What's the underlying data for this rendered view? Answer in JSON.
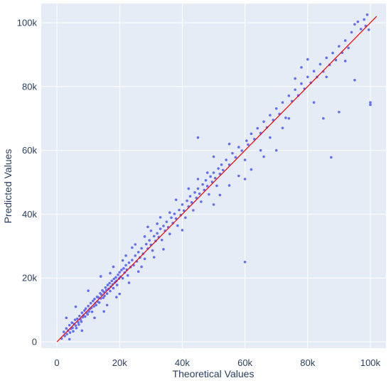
{
  "chart_data": {
    "type": "scatter",
    "title": "",
    "xlabel": "Theoretical Values",
    "ylabel": "Predicted Values",
    "xlim": [
      -5000,
      105000
    ],
    "ylim": [
      -2000,
      106000
    ],
    "x_ticks": [
      0,
      20000,
      40000,
      60000,
      80000,
      100000
    ],
    "x_tick_labels": [
      "0",
      "20k",
      "40k",
      "60k",
      "80k",
      "100k"
    ],
    "y_ticks": [
      0,
      20000,
      40000,
      60000,
      80000,
      100000
    ],
    "y_tick_labels": [
      "0",
      "20k",
      "40k",
      "60k",
      "80k",
      "100k"
    ],
    "grid": true,
    "legend": "none",
    "colors": {
      "background": "#e5ecf6",
      "grid": "#ffffff",
      "points": "#636efa",
      "diagonal": "#ff0000",
      "text": "#2a3f5f"
    },
    "series": [
      {
        "type": "scatter",
        "points": [
          [
            1500,
            1000
          ],
          [
            2200,
            3100
          ],
          [
            2500,
            1800
          ],
          [
            3000,
            4200
          ],
          [
            3200,
            2400
          ],
          [
            3600,
            3500
          ],
          [
            4000,
            5200
          ],
          [
            4200,
            2900
          ],
          [
            4500,
            4100
          ],
          [
            4800,
            6000
          ],
          [
            5000,
            4400
          ],
          [
            5200,
            3300
          ],
          [
            5500,
            5600
          ],
          [
            5800,
            6900
          ],
          [
            6000,
            5100
          ],
          [
            6200,
            4300
          ],
          [
            6500,
            7200
          ],
          [
            6800,
            6100
          ],
          [
            7000,
            5400
          ],
          [
            7200,
            8100
          ],
          [
            7500,
            7000
          ],
          [
            7800,
            6300
          ],
          [
            8000,
            9100
          ],
          [
            8200,
            7700
          ],
          [
            8500,
            8300
          ],
          [
            8800,
            9800
          ],
          [
            9000,
            7900
          ],
          [
            9200,
            10400
          ],
          [
            9500,
            9000
          ],
          [
            9800,
            8600
          ],
          [
            10000,
            11200
          ],
          [
            10200,
            9500
          ],
          [
            10500,
            10300
          ],
          [
            10800,
            12100
          ],
          [
            11000,
            10600
          ],
          [
            11200,
            9400
          ],
          [
            11500,
            12800
          ],
          [
            11800,
            11100
          ],
          [
            12000,
            13400
          ],
          [
            12200,
            12000
          ],
          [
            12500,
            11500
          ],
          [
            12800,
            14100
          ],
          [
            13000,
            12600
          ],
          [
            13200,
            13900
          ],
          [
            13500,
            12300
          ],
          [
            13800,
            15200
          ],
          [
            14000,
            13600
          ],
          [
            14200,
            14800
          ],
          [
            14500,
            16100
          ],
          [
            14800,
            13800
          ],
          [
            15000,
            15600
          ],
          [
            15200,
            14400
          ],
          [
            15500,
            17000
          ],
          [
            15800,
            16200
          ],
          [
            16000,
            15100
          ],
          [
            16200,
            17800
          ],
          [
            16500,
            16600
          ],
          [
            16800,
            18400
          ],
          [
            17000,
            15900
          ],
          [
            17200,
            17300
          ],
          [
            17500,
            19100
          ],
          [
            17800,
            18000
          ],
          [
            18000,
            16800
          ],
          [
            18200,
            19700
          ],
          [
            18500,
            18600
          ],
          [
            18800,
            20200
          ],
          [
            19000,
            19100
          ],
          [
            19200,
            17800
          ],
          [
            19500,
            21000
          ],
          [
            19800,
            19800
          ],
          [
            20000,
            21800
          ],
          [
            20300,
            20400
          ],
          [
            20600,
            22500
          ],
          [
            21000,
            19900
          ],
          [
            21300,
            23000
          ],
          [
            21600,
            21700
          ],
          [
            22000,
            24000
          ],
          [
            22300,
            22600
          ],
          [
            22600,
            20800
          ],
          [
            23000,
            24800
          ],
          [
            23500,
            23400
          ],
          [
            24000,
            25600
          ],
          [
            24500,
            24000
          ],
          [
            25000,
            27000
          ],
          [
            25500,
            25200
          ],
          [
            26000,
            28100
          ],
          [
            26500,
            26400
          ],
          [
            27000,
            29300
          ],
          [
            27500,
            27600
          ],
          [
            28000,
            26000
          ],
          [
            28500,
            30600
          ],
          [
            29000,
            29200
          ],
          [
            29500,
            31800
          ],
          [
            30000,
            30400
          ],
          [
            30500,
            28600
          ],
          [
            31000,
            33100
          ],
          [
            31500,
            31600
          ],
          [
            32000,
            34000
          ],
          [
            32500,
            32800
          ],
          [
            33000,
            35400
          ],
          [
            33500,
            31900
          ],
          [
            34000,
            36300
          ],
          [
            34500,
            34800
          ],
          [
            35000,
            37600
          ],
          [
            35500,
            35900
          ],
          [
            36000,
            33800
          ],
          [
            36500,
            38900
          ],
          [
            37000,
            37200
          ],
          [
            37500,
            40100
          ],
          [
            38000,
            38600
          ],
          [
            38500,
            36400
          ],
          [
            39000,
            41300
          ],
          [
            39500,
            39700
          ],
          [
            40000,
            43000
          ],
          [
            40500,
            41100
          ],
          [
            41000,
            38900
          ],
          [
            41500,
            44200
          ],
          [
            42000,
            42400
          ],
          [
            42500,
            45600
          ],
          [
            43000,
            43700
          ],
          [
            43500,
            41200
          ],
          [
            44000,
            46800
          ],
          [
            44500,
            45100
          ],
          [
            45000,
            48000
          ],
          [
            45500,
            46400
          ],
          [
            46000,
            43900
          ],
          [
            46500,
            49300
          ],
          [
            47000,
            47600
          ],
          [
            47500,
            50600
          ],
          [
            48000,
            48800
          ],
          [
            48500,
            46200
          ],
          [
            49000,
            51800
          ],
          [
            49500,
            50100
          ],
          [
            50000,
            53000
          ],
          [
            50500,
            51300
          ],
          [
            51000,
            48900
          ],
          [
            51500,
            54300
          ],
          [
            52000,
            52600
          ],
          [
            52500,
            55500
          ],
          [
            53000,
            53800
          ],
          [
            54000,
            57000
          ],
          [
            55000,
            55500
          ],
          [
            56000,
            59100
          ],
          [
            57000,
            57800
          ],
          [
            58000,
            61000
          ],
          [
            59000,
            59900
          ],
          [
            60000,
            25000
          ],
          [
            60500,
            63000
          ],
          [
            61000,
            61800
          ],
          [
            62000,
            65200
          ],
          [
            63000,
            63500
          ],
          [
            64000,
            66900
          ],
          [
            65000,
            65400
          ],
          [
            66000,
            69000
          ],
          [
            67000,
            67200
          ],
          [
            68000,
            71000
          ],
          [
            69000,
            69500
          ],
          [
            70000,
            73100
          ],
          [
            71000,
            71400
          ],
          [
            72000,
            75000
          ],
          [
            73000,
            70200
          ],
          [
            74000,
            77100
          ],
          [
            75000,
            75400
          ],
          [
            76000,
            79000
          ],
          [
            77000,
            77200
          ],
          [
            78000,
            80900
          ],
          [
            79000,
            79300
          ],
          [
            80000,
            83000
          ],
          [
            81000,
            81200
          ],
          [
            82000,
            84800
          ],
          [
            83000,
            83000
          ],
          [
            84000,
            87000
          ],
          [
            85000,
            84700
          ],
          [
            86000,
            89000
          ],
          [
            87000,
            86800
          ],
          [
            87500,
            57800
          ],
          [
            88000,
            90500
          ],
          [
            89000,
            88300
          ],
          [
            90000,
            92600
          ],
          [
            91000,
            90600
          ],
          [
            92000,
            94400
          ],
          [
            93000,
            92100
          ],
          [
            94000,
            97000
          ],
          [
            95000,
            99500
          ],
          [
            96000,
            100300
          ],
          [
            97000,
            98000
          ],
          [
            98000,
            101000
          ],
          [
            98500,
            99000
          ],
          [
            99000,
            102500
          ],
          [
            99500,
            97800
          ],
          [
            100000,
            74300
          ],
          [
            100000,
            75000
          ],
          [
            95000,
            82000
          ],
          [
            90000,
            72000
          ],
          [
            85000,
            70000
          ],
          [
            82000,
            75000
          ],
          [
            80000,
            88500
          ],
          [
            76000,
            82500
          ],
          [
            72000,
            67000
          ],
          [
            70000,
            60000
          ],
          [
            65000,
            60000
          ],
          [
            62000,
            54000
          ],
          [
            60000,
            57000
          ],
          [
            58000,
            52000
          ],
          [
            55000,
            49000
          ],
          [
            52000,
            46000
          ],
          [
            50000,
            58000
          ],
          [
            48000,
            53000
          ],
          [
            45000,
            51000
          ],
          [
            42000,
            48000
          ],
          [
            40000,
            35000
          ],
          [
            38000,
            44500
          ],
          [
            36000,
            40500
          ],
          [
            34000,
            29000
          ],
          [
            32000,
            37000
          ],
          [
            30000,
            34800
          ],
          [
            28000,
            33000
          ],
          [
            26000,
            22000
          ],
          [
            24000,
            29500
          ],
          [
            22000,
            27000
          ],
          [
            20000,
            15000
          ],
          [
            18000,
            23500
          ],
          [
            16000,
            11500
          ],
          [
            14000,
            20500
          ],
          [
            12000,
            7500
          ],
          [
            10000,
            16000
          ],
          [
            8000,
            3500
          ],
          [
            6000,
            11000
          ],
          [
            4000,
            800
          ],
          [
            3000,
            7500
          ],
          [
            45000,
            64000
          ],
          [
            50000,
            43000
          ],
          [
            55000,
            62000
          ],
          [
            60000,
            51000
          ],
          [
            66000,
            58000
          ],
          [
            68000,
            64000
          ],
          [
            74000,
            70000
          ],
          [
            78000,
            86000
          ],
          [
            86000,
            83000
          ],
          [
            92000,
            88000
          ],
          [
            15000,
            9500
          ],
          [
            17000,
            21500
          ],
          [
            19000,
            14000
          ],
          [
            21000,
            25500
          ],
          [
            23000,
            18500
          ],
          [
            25000,
            30500
          ],
          [
            27000,
            23500
          ],
          [
            29000,
            36000
          ],
          [
            31000,
            26500
          ],
          [
            33000,
            39000
          ]
        ]
      },
      {
        "type": "line",
        "points": [
          [
            0,
            0
          ],
          [
            102000,
            102000
          ]
        ]
      }
    ]
  }
}
